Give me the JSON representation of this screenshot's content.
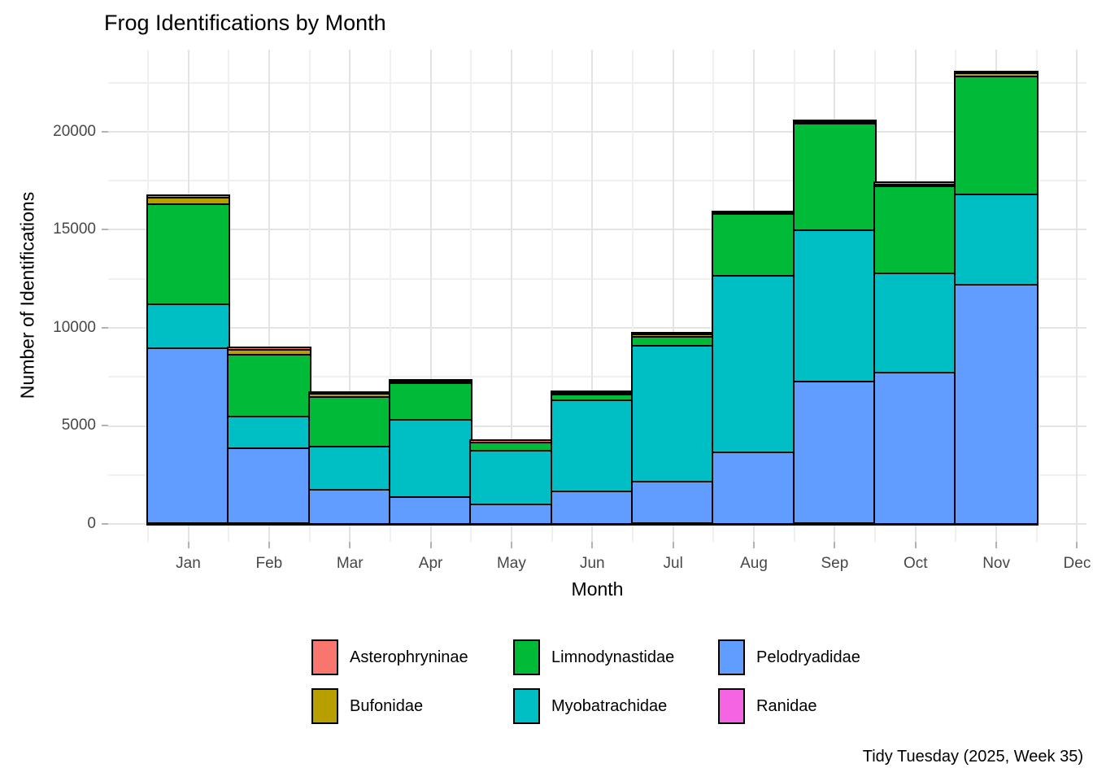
{
  "title": "Frog Identifications by Month",
  "caption": "Tidy Tuesday (2025, Week 35)",
  "axes": {
    "x_title": "Month",
    "y_title": "Number of Identifications",
    "y_tick_labels": [
      "0",
      "5000",
      "10000",
      "15000",
      "20000"
    ]
  },
  "colors": {
    "asterophryninae": "#F8766D",
    "bufonidae": "#B79F00",
    "limnodynastidae": "#00BA38",
    "myobatrachidae": "#00BFC4",
    "pelodryadidae": "#619CFF",
    "ranidae": "#F564E3",
    "bar_outline": "#000000",
    "grid_major": "#E4E4E4",
    "grid_minor": "#F0F0F0",
    "axis_tick": "#B3B3B3",
    "axis_text": "#474747"
  },
  "chart_data": {
    "type": "bar",
    "stacked": true,
    "stack_order": "bottom_to_top",
    "title": "Frog Identifications by Month",
    "xlabel": "Month",
    "ylabel": "Number of Identifications",
    "categories": [
      "Jan",
      "Feb",
      "Mar",
      "Apr",
      "May",
      "Jun",
      "Jul",
      "Aug",
      "Sep",
      "Oct",
      "Nov",
      "Dec"
    ],
    "series": [
      {
        "name": "Ranidae",
        "color": "#F564E3",
        "values": [
          30,
          30,
          10,
          10,
          10,
          20,
          30,
          10,
          30,
          20,
          20,
          0
        ]
      },
      {
        "name": "Pelodryadidae",
        "color": "#619CFF",
        "values": [
          8920,
          3820,
          1740,
          1370,
          1000,
          1620,
          2120,
          3650,
          7220,
          7680,
          12160,
          0
        ]
      },
      {
        "name": "Myobatrachidae",
        "color": "#00BFC4",
        "values": [
          2240,
          1620,
          2200,
          3940,
          2740,
          4650,
          6930,
          9000,
          7720,
          5060,
          4610,
          0
        ]
      },
      {
        "name": "Limnodynastidae",
        "color": "#00BA38",
        "values": [
          5100,
          3150,
          2530,
          1870,
          420,
          290,
          460,
          3150,
          5440,
          4440,
          6020,
          0
        ]
      },
      {
        "name": "Bufonidae",
        "color": "#B79F00",
        "values": [
          330,
          260,
          150,
          80,
          50,
          100,
          130,
          50,
          90,
          120,
          170,
          0
        ]
      },
      {
        "name": "Asterophryninae",
        "color": "#F8766D",
        "values": [
          120,
          100,
          40,
          30,
          20,
          40,
          50,
          30,
          50,
          50,
          40,
          0
        ]
      }
    ],
    "totals": [
      16740,
      8980,
      6670,
      7300,
      4240,
      6720,
      9720,
      15890,
      20550,
      17370,
      23020,
      0
    ],
    "ylim": [
      0,
      24000
    ],
    "y_major_ticks": [
      0,
      5000,
      10000,
      15000,
      20000
    ],
    "y_minor_ticks": [
      2500,
      7500,
      12500,
      17500,
      22500
    ],
    "grid": true,
    "legend": {
      "position": "bottom",
      "entries": [
        {
          "label": "Asterophryninae",
          "color": "#F8766D"
        },
        {
          "label": "Limnodynastidae",
          "color": "#00BA38"
        },
        {
          "label": "Pelodryadidae",
          "color": "#619CFF"
        },
        {
          "label": "Bufonidae",
          "color": "#B79F00"
        },
        {
          "label": "Myobatrachidae",
          "color": "#00BFC4"
        },
        {
          "label": "Ranidae",
          "color": "#F564E3"
        }
      ]
    }
  }
}
